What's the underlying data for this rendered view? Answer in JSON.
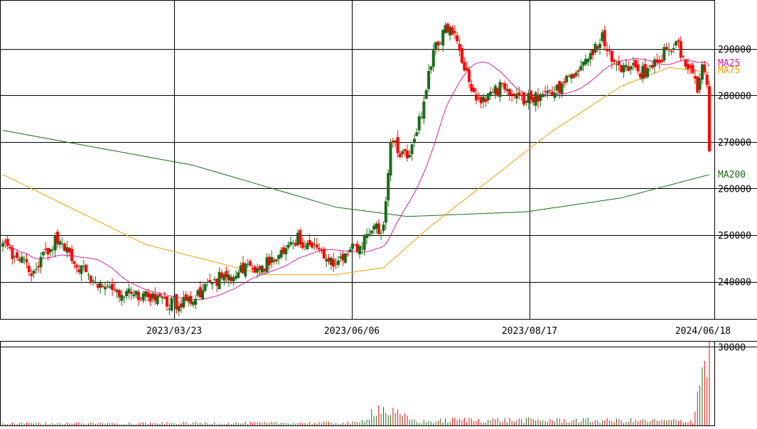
{
  "chart_data": {
    "type": "candlestick",
    "price_axis": {
      "ticks": [
        240000,
        250000,
        260000,
        270000,
        280000,
        290000
      ],
      "tick_labels": [
        "240000",
        "250000",
        "260000",
        "270000",
        "280000",
        "290000"
      ],
      "range": [
        232000,
        300500
      ]
    },
    "volume_axis": {
      "ticks": [
        30000
      ],
      "tick_labels": [
        "30000"
      ],
      "range": [
        0,
        32000
      ]
    },
    "date_labels": [
      "2023/03/23",
      "2023/06/06",
      "2023/08/17",
      "2024/06/18"
    ],
    "grid": true,
    "colors": {
      "up": "#1a6b1a",
      "down": "#ff0000",
      "ma25": "#e020a0",
      "ma75": "#f0a000",
      "ma200": "#1a6b1a",
      "grid": "#000000"
    },
    "ma_labels": {
      "ma25": "MA25",
      "ma75": "MA75",
      "ma200": "MA200"
    },
    "ohlc_anchors": [
      {
        "i": 0,
        "close": 248000
      },
      {
        "i": 12,
        "close": 242000
      },
      {
        "i": 22,
        "close": 249000
      },
      {
        "i": 38,
        "close": 240000
      },
      {
        "i": 55,
        "close": 237000
      },
      {
        "i": 75,
        "close": 235000
      },
      {
        "i": 92,
        "close": 241000
      },
      {
        "i": 112,
        "close": 244000
      },
      {
        "i": 124,
        "close": 249000
      },
      {
        "i": 140,
        "close": 244000
      },
      {
        "i": 157,
        "close": 251000
      },
      {
        "i": 160,
        "close": 252000
      },
      {
        "i": 163,
        "close": 270000
      },
      {
        "i": 170,
        "close": 267000
      },
      {
        "i": 176,
        "close": 276000
      },
      {
        "i": 181,
        "close": 289000
      },
      {
        "i": 188,
        "close": 296000
      },
      {
        "i": 195,
        "close": 284000
      },
      {
        "i": 200,
        "close": 279000
      },
      {
        "i": 210,
        "close": 282000
      },
      {
        "i": 220,
        "close": 279000
      },
      {
        "i": 235,
        "close": 282000
      },
      {
        "i": 247,
        "close": 289000
      },
      {
        "i": 252,
        "close": 293000
      },
      {
        "i": 258,
        "close": 286000
      },
      {
        "i": 270,
        "close": 285000
      },
      {
        "i": 278,
        "close": 289000
      },
      {
        "i": 283,
        "close": 292000
      },
      {
        "i": 288,
        "close": 286000
      },
      {
        "i": 292,
        "close": 281000
      },
      {
        "i": 294,
        "close": 287000
      },
      {
        "i": 296,
        "close": 282000
      },
      {
        "i": 297,
        "close": 268000
      }
    ],
    "ma200_anchors": [
      {
        "i": 0,
        "value": 272500
      },
      {
        "i": 80,
        "value": 265000
      },
      {
        "i": 140,
        "value": 256000
      },
      {
        "i": 170,
        "value": 254000
      },
      {
        "i": 220,
        "value": 255000
      },
      {
        "i": 260,
        "value": 258000
      },
      {
        "i": 297,
        "value": 263000
      }
    ],
    "ma75_anchors": [
      {
        "i": 0,
        "value": 263000
      },
      {
        "i": 60,
        "value": 248000
      },
      {
        "i": 110,
        "value": 241500
      },
      {
        "i": 140,
        "value": 241500
      },
      {
        "i": 160,
        "value": 243000
      },
      {
        "i": 180,
        "value": 252000
      },
      {
        "i": 200,
        "value": 260000
      },
      {
        "i": 230,
        "value": 272000
      },
      {
        "i": 260,
        "value": 282000
      },
      {
        "i": 280,
        "value": 286000
      },
      {
        "i": 297,
        "value": 285000
      }
    ],
    "volume_anchors": [
      {
        "i": 0,
        "value": 900
      },
      {
        "i": 150,
        "value": 1200
      },
      {
        "i": 157,
        "value": 8000
      },
      {
        "i": 175,
        "value": 1500
      },
      {
        "i": 190,
        "value": 2500
      },
      {
        "i": 290,
        "value": 2000
      },
      {
        "i": 295,
        "value": 31000
      },
      {
        "i": 297,
        "value": 31000
      }
    ]
  }
}
